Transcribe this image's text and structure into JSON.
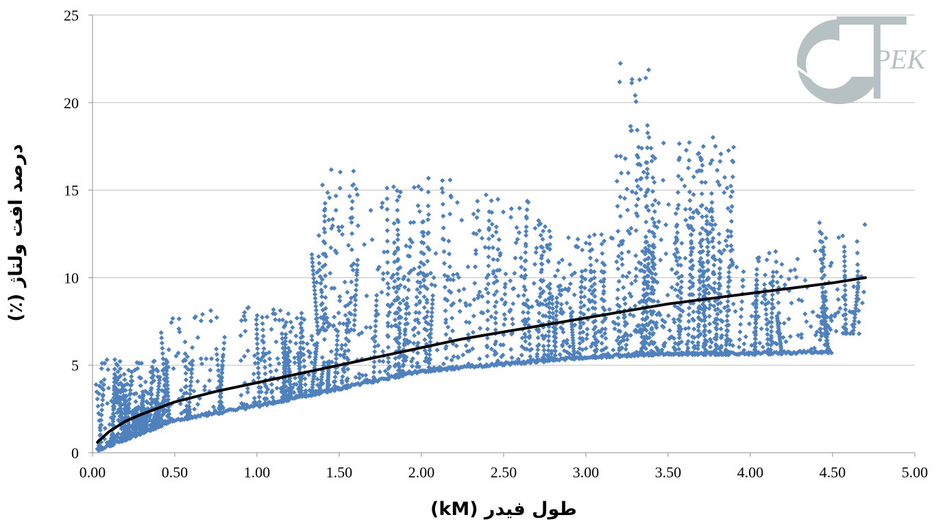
{
  "chart_data": {
    "type": "scatter",
    "xlabel": "طول فیدر (kM)",
    "ylabel": "درصد افت ولتاژ (٪)",
    "xlim": [
      0,
      5
    ],
    "ylim": [
      0,
      25
    ],
    "x_ticks": [
      "0.00",
      "0.50",
      "1.00",
      "1.50",
      "2.00",
      "2.50",
      "3.00",
      "3.50",
      "4.00",
      "4.50",
      "5.00"
    ],
    "y_ticks": [
      "0",
      "5",
      "10",
      "15",
      "20",
      "25"
    ],
    "grid": "horizontal",
    "legend": "none",
    "colors": {
      "points": "#4f81bd",
      "trend": "#000000",
      "grid": "#bfbfbf",
      "logo": "#b7c1c3"
    },
    "series": [
      {
        "kind": "scatter",
        "clusters": [
          {
            "x0": 0.03,
            "x1": 0.45,
            "y0": 0.1,
            "y1": 5.4,
            "density": 140
          },
          {
            "x0": 0.1,
            "x1": 0.45,
            "y0": 0.3,
            "y1": 3.5,
            "density": 90
          },
          {
            "x0": 0.45,
            "x1": 0.8,
            "y0": 1.8,
            "y1": 8.2,
            "density": 70
          },
          {
            "x0": 0.9,
            "x1": 1.2,
            "y0": 2.6,
            "y1": 8.5,
            "density": 70
          },
          {
            "x0": 1.15,
            "x1": 1.55,
            "y0": 3.2,
            "y1": 8.0,
            "density": 110
          },
          {
            "x0": 1.35,
            "x1": 1.6,
            "y0": 7.0,
            "y1": 16.2,
            "density": 60
          },
          {
            "x0": 1.6,
            "x1": 1.9,
            "y0": 4.0,
            "y1": 15.2,
            "density": 80
          },
          {
            "x0": 1.85,
            "x1": 2.25,
            "y0": 4.5,
            "y1": 15.7,
            "density": 90
          },
          {
            "x0": 2.25,
            "x1": 2.8,
            "y0": 5.0,
            "y1": 14.9,
            "density": 110
          },
          {
            "x0": 2.7,
            "x1": 3.25,
            "y0": 5.3,
            "y1": 12.5,
            "density": 140
          },
          {
            "x0": 3.2,
            "x1": 3.42,
            "y0": 5.5,
            "y1": 22.3,
            "density": 70
          },
          {
            "x0": 3.3,
            "x1": 3.9,
            "y0": 5.6,
            "y1": 18.2,
            "density": 230
          },
          {
            "x0": 3.9,
            "x1": 4.5,
            "y0": 5.6,
            "y1": 11.6,
            "density": 90
          },
          {
            "x0": 4.4,
            "x1": 4.7,
            "y0": 6.8,
            "y1": 13.2,
            "density": 50
          }
        ],
        "lower_envelope": [
          [
            0.03,
            0.1
          ],
          [
            0.5,
            1.8
          ],
          [
            1.0,
            2.6
          ],
          [
            1.5,
            3.6
          ],
          [
            2.0,
            4.6
          ],
          [
            2.5,
            5.0
          ],
          [
            3.0,
            5.4
          ],
          [
            3.5,
            5.6
          ],
          [
            4.0,
            5.6
          ],
          [
            4.5,
            5.7
          ]
        ]
      },
      {
        "kind": "trend",
        "points": [
          [
            0.03,
            0.6
          ],
          [
            0.1,
            1.2
          ],
          [
            0.2,
            1.8
          ],
          [
            0.3,
            2.2
          ],
          [
            0.5,
            2.9
          ],
          [
            0.75,
            3.5
          ],
          [
            1.0,
            4.0
          ],
          [
            1.25,
            4.5
          ],
          [
            1.5,
            5.0
          ],
          [
            1.75,
            5.5
          ],
          [
            2.0,
            6.0
          ],
          [
            2.25,
            6.5
          ],
          [
            2.5,
            6.9
          ],
          [
            2.75,
            7.3
          ],
          [
            3.0,
            7.7
          ],
          [
            3.25,
            8.1
          ],
          [
            3.5,
            8.5
          ],
          [
            3.75,
            8.8
          ],
          [
            4.0,
            9.1
          ],
          [
            4.25,
            9.4
          ],
          [
            4.5,
            9.7
          ],
          [
            4.7,
            10.0
          ]
        ]
      }
    ]
  },
  "logo": {
    "text": "PEK"
  }
}
